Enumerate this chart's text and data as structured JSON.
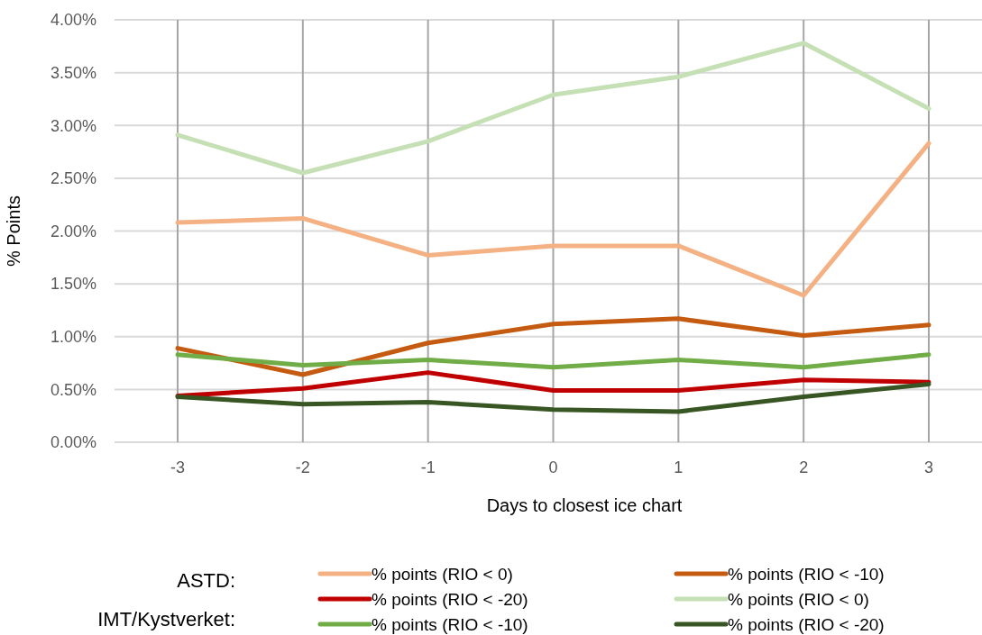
{
  "chart_data": {
    "type": "line",
    "xlabel": "Days to closest ice chart",
    "ylabel": "% Points",
    "categories": [
      "-3",
      "-2",
      "-1",
      "0",
      "1",
      "2",
      "3"
    ],
    "ylim": [
      0,
      4
    ],
    "yticks": [
      {
        "value": 0,
        "label": "0.00%"
      },
      {
        "value": 0.5,
        "label": "0.50%"
      },
      {
        "value": 1,
        "label": "1.00%"
      },
      {
        "value": 1.5,
        "label": "1.50%"
      },
      {
        "value": 2,
        "label": "2.00%"
      },
      {
        "value": 2.5,
        "label": "2.50%"
      },
      {
        "value": 3,
        "label": "3.00%"
      },
      {
        "value": 3.5,
        "label": "3.50%"
      },
      {
        "value": 4,
        "label": "4.00%"
      }
    ],
    "grid": true,
    "legend": "bottom",
    "marker": "none",
    "line_style": "solid",
    "annotations": [
      "ASTD:",
      "IMT/Kystverket:"
    ],
    "series": [
      {
        "name": "% points (RIO < 0)",
        "color": "#f4b183",
        "values": [
          2.08,
          2.12,
          1.77,
          1.86,
          1.86,
          1.39,
          2.83
        ]
      },
      {
        "name": "% points (RIO < -10)",
        "color": "#c55a11",
        "values": [
          0.89,
          0.64,
          0.94,
          1.12,
          1.17,
          1.01,
          1.11
        ]
      },
      {
        "name": "% points (RIO < -20)",
        "color": "#c00000",
        "values": [
          0.44,
          0.51,
          0.66,
          0.49,
          0.49,
          0.59,
          0.57
        ]
      },
      {
        "name": "% points (RIO < 0)",
        "color": "#c5e0b4",
        "values": [
          2.91,
          2.55,
          2.85,
          3.29,
          3.46,
          3.78,
          3.16
        ]
      },
      {
        "name": "% points (RIO < -10)",
        "color": "#70ad47",
        "values": [
          0.83,
          0.73,
          0.78,
          0.71,
          0.78,
          0.71,
          0.83
        ]
      },
      {
        "name": "% points (RIO < -20)",
        "color": "#375623",
        "values": [
          0.43,
          0.36,
          0.38,
          0.31,
          0.29,
          0.43,
          0.55
        ]
      }
    ]
  }
}
